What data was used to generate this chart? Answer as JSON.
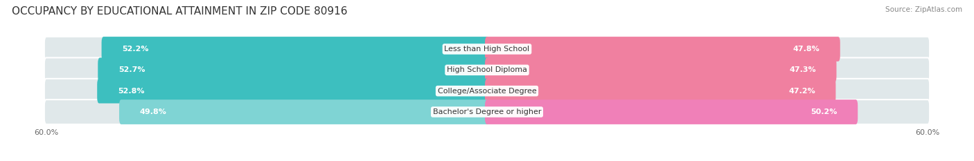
{
  "title": "OCCUPANCY BY EDUCATIONAL ATTAINMENT IN ZIP CODE 80916",
  "source": "Source: ZipAtlas.com",
  "categories": [
    "Less than High School",
    "High School Diploma",
    "College/Associate Degree",
    "Bachelor's Degree or higher"
  ],
  "owner_values": [
    52.2,
    52.7,
    52.8,
    49.8
  ],
  "renter_values": [
    47.8,
    47.3,
    47.2,
    50.2
  ],
  "owner_colors": [
    "#3dbfbf",
    "#3dbfbf",
    "#3dbfbf",
    "#7fd4d4"
  ],
  "renter_colors": [
    "#f080a0",
    "#f080a0",
    "#f080a0",
    "#f080b8"
  ],
  "owner_color_legend": "#3dbfbf",
  "renter_color_legend": "#f080a0",
  "axis_max": 60.0,
  "bar_height": 0.62,
  "background_color": "#ffffff",
  "bar_bg_color": "#e0e8ea",
  "title_fontsize": 11,
  "label_fontsize": 8,
  "tick_fontsize": 8,
  "source_fontsize": 7.5
}
